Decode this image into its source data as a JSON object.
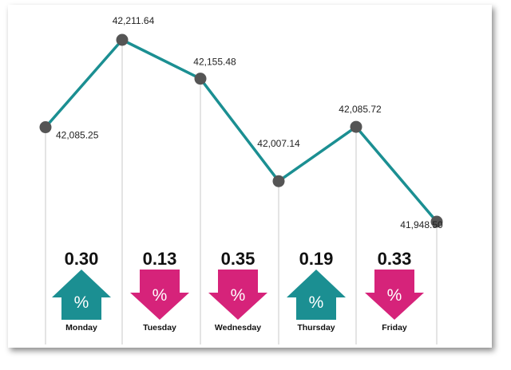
{
  "chart_data": {
    "type": "line",
    "categories": [
      "Monday",
      "Tuesday",
      "Wednesday",
      "Thursday",
      "Friday"
    ],
    "points": [
      {
        "label": "42,085.25",
        "y": 42085.25
      },
      {
        "label": "42,211.64",
        "y": 42211.64
      },
      {
        "label": "42,155.48",
        "y": 42155.48
      },
      {
        "label": "42,007.14",
        "y": 42007.14
      },
      {
        "label": "42,085.72",
        "y": 42085.72
      },
      {
        "label": "41,948.50",
        "y": 41948.5
      }
    ],
    "ylim": [
      41948.5,
      42211.64
    ],
    "changes": [
      {
        "day": "Monday",
        "value": "0.30",
        "direction": "up"
      },
      {
        "day": "Tuesday",
        "value": "0.13",
        "direction": "down"
      },
      {
        "day": "Wednesday",
        "value": "0.35",
        "direction": "down"
      },
      {
        "day": "Thursday",
        "value": "0.19",
        "direction": "up"
      },
      {
        "day": "Friday",
        "value": "0.33",
        "direction": "down"
      }
    ],
    "percent_symbol": "%",
    "colors": {
      "line": "#1b8f92",
      "marker": "#555555",
      "up": "#1b8f92",
      "down": "#d6237a",
      "guide": "#c8c8c8"
    }
  }
}
